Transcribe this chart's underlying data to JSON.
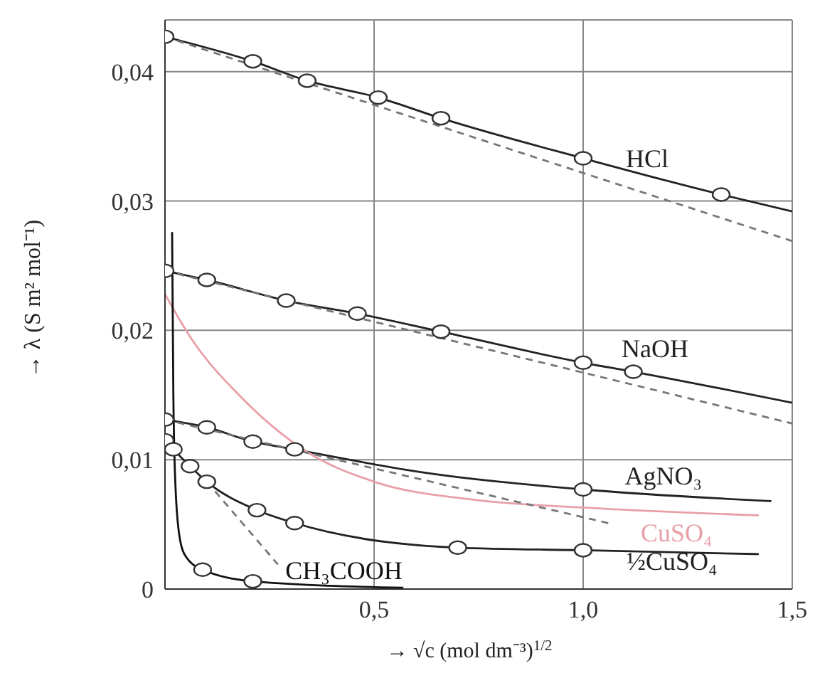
{
  "chart_data": {
    "type": "line",
    "xlabel": "→ √c  (mol dm⁻³)$^{1/2}$",
    "ylabel": "→ λ (S m² mol⁻¹)",
    "xlim": [
      0,
      1.5
    ],
    "xticks": [
      {
        "value": 0,
        "label": null
      },
      {
        "value": 0.5,
        "label": "0,5"
      },
      {
        "value": 1,
        "label": "1,0"
      },
      {
        "value": 1.5,
        "label": "1,5"
      }
    ],
    "ylim": [
      0,
      0.044
    ],
    "yticks": [
      {
        "value": 0,
        "label": "0"
      },
      {
        "value": 0.01,
        "label": "0,01"
      },
      {
        "value": 0.02,
        "label": "0,02"
      },
      {
        "value": 0.03,
        "label": "0,03"
      },
      {
        "value": 0.04,
        "label": "0,04"
      }
    ],
    "grid": true,
    "legend": false,
    "line_style": "solid",
    "marker": "none",
    "series": [
      {
        "name": "HCl",
        "color": "#222222",
        "x": [
          0,
          0.21,
          0.34,
          0.51,
          0.66,
          1.0,
          1.33,
          1.5
        ],
        "values": [
          0.0427,
          0.0408,
          0.0393,
          0.038,
          0.0364,
          0.0333,
          0.0305,
          0.0292
        ]
      },
      {
        "name": "NaOH",
        "color": "#222222",
        "x": [
          0,
          0.1,
          0.29,
          0.46,
          0.66,
          1.0,
          1.12,
          1.5
        ],
        "values": [
          0.0246,
          0.0239,
          0.0223,
          0.0213,
          0.0199,
          0.0175,
          0.0168,
          0.0144
        ]
      },
      {
        "name": "AgNO₃",
        "color": "#222222",
        "x": [
          0,
          0.1,
          0.21,
          0.31,
          0.6,
          1.0,
          1.45
        ],
        "values": [
          0.0131,
          0.0125,
          0.0114,
          0.0108,
          0.0091,
          0.0077,
          0.0068
        ]
      },
      {
        "name": "CuSO₄",
        "color": "#e8a0a8",
        "x": [
          0,
          0.06,
          0.18,
          0.34,
          0.5,
          0.74,
          1.0,
          1.42
        ],
        "values": [
          0.0228,
          0.0195,
          0.0149,
          0.0106,
          0.0083,
          0.0069,
          0.0063,
          0.0057
        ]
      },
      {
        "name": "½CuSO₄",
        "color": "#222222",
        "x": [
          0,
          0.02,
          0.06,
          0.1,
          0.22,
          0.31,
          0.7,
          1.0,
          1.42
        ],
        "values": [
          0.0115,
          0.0108,
          0.0095,
          0.0083,
          0.0061,
          0.0051,
          0.0032,
          0.003,
          0.0027
        ]
      },
      {
        "name": "CH₃COOH",
        "color": "#111111",
        "x": [
          0.017,
          0.02,
          0.025,
          0.035,
          0.05,
          0.09,
          0.21,
          0.57
        ],
        "values": [
          0.0276,
          0.015,
          0.008,
          0.004,
          0.0025,
          0.0015,
          0.0006,
          0.0001
        ]
      },
      {
        "color": "#777777",
        "line_style": "dashed",
        "x": [
          0,
          1.5
        ],
        "values": [
          0.0427,
          0.0269
        ]
      },
      {
        "color": "#777777",
        "line_style": "dashed",
        "x": [
          0,
          1.5
        ],
        "values": [
          0.0246,
          0.0128
        ]
      },
      {
        "color": "#777777",
        "line_style": "dashed",
        "x": [
          0,
          1.06
        ],
        "values": [
          0.0131,
          0.0051
        ]
      },
      {
        "color": "#777777",
        "line_style": "dashed",
        "x": [
          0.1,
          0.27
        ],
        "values": [
          0.0083,
          0.0019
        ]
      },
      {
        "type": "scatter",
        "marker": "circle",
        "color": "#333333",
        "x": [
          0,
          0.21,
          0.34,
          0.51,
          0.66,
          1.0,
          1.33
        ],
        "values": [
          0.0427,
          0.0408,
          0.0393,
          0.038,
          0.0364,
          0.0333,
          0.0305
        ]
      },
      {
        "type": "scatter",
        "marker": "circle",
        "color": "#333333",
        "x": [
          0,
          0.1,
          0.29,
          0.46,
          0.66,
          1.0,
          1.12
        ],
        "values": [
          0.0246,
          0.0239,
          0.0223,
          0.0213,
          0.0199,
          0.0175,
          0.0168
        ]
      },
      {
        "type": "scatter",
        "marker": "circle",
        "color": "#333333",
        "x": [
          0,
          0.1,
          0.21,
          0.31,
          1.0
        ],
        "values": [
          0.0131,
          0.0125,
          0.0114,
          0.0108,
          0.0077
        ]
      },
      {
        "type": "scatter",
        "marker": "circle",
        "color": "#333333",
        "x": [
          0,
          0.02,
          0.06,
          0.1,
          0.22,
          0.31,
          0.7,
          1.0
        ],
        "values": [
          0.0115,
          0.0108,
          0.0095,
          0.0083,
          0.0061,
          0.0051,
          0.0032,
          0.003
        ]
      },
      {
        "type": "scatter",
        "marker": "circle",
        "color": "#333333",
        "x": [
          0.09,
          0.21
        ],
        "values": [
          0.0015,
          0.0006
        ]
      }
    ]
  }
}
